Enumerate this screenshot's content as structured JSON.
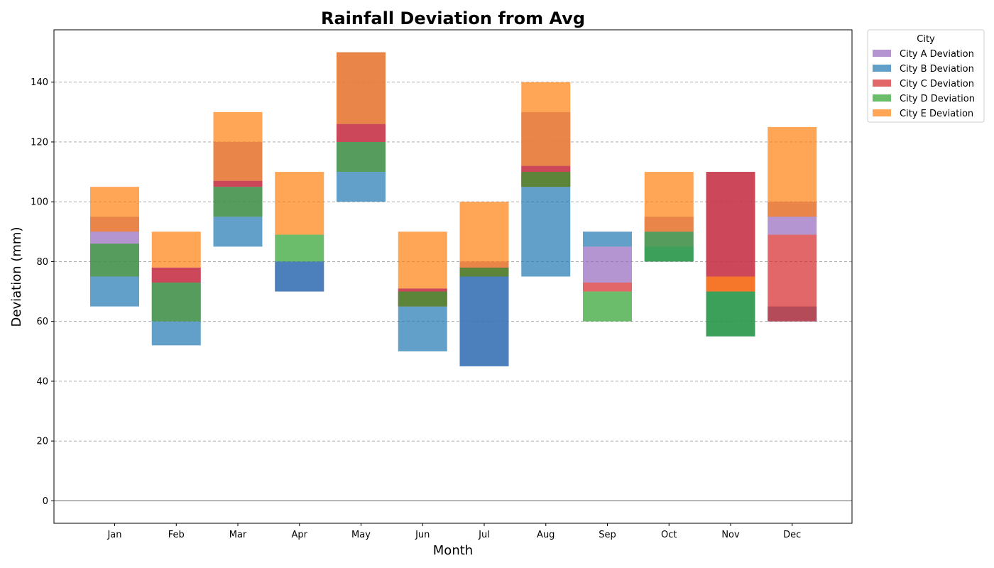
{
  "chart_data": {
    "type": "bar",
    "title": "Rainfall Deviation from Avg",
    "xlabel": "Month",
    "ylabel": "Deviation (mm)",
    "categories": [
      "Jan",
      "Feb",
      "Mar",
      "Apr",
      "May",
      "Jun",
      "Jul",
      "Aug",
      "Sep",
      "Oct",
      "Nov",
      "Dec"
    ],
    "ylim": [
      -7.5,
      157.5
    ],
    "yticks": [
      0,
      20,
      40,
      60,
      80,
      100,
      120,
      140
    ],
    "grid": true,
    "legend_title": "City",
    "legend_position": "outside-top-right",
    "series": [
      {
        "name": "City A Deviation",
        "color": "#9467bd",
        "ranges": [
          [
            75,
            95
          ],
          [
            60,
            78
          ],
          [
            95,
            120
          ],
          [
            70,
            80
          ],
          [
            110,
            150
          ],
          [
            65,
            71
          ],
          [
            45,
            80
          ],
          [
            105,
            130
          ],
          [
            73,
            85
          ],
          [
            85,
            95
          ],
          [
            75,
            110
          ],
          [
            89,
            100
          ]
        ]
      },
      {
        "name": "City B Deviation",
        "color": "#1f77b4",
        "ranges": [
          [
            65,
            75
          ],
          [
            52,
            60
          ],
          [
            85,
            95
          ],
          [
            70,
            80
          ],
          [
            100,
            110
          ],
          [
            50,
            65
          ],
          [
            45,
            75
          ],
          [
            75,
            105
          ],
          [
            85,
            90
          ],
          [
            80,
            85
          ],
          [
            55,
            70
          ],
          [
            60,
            65
          ]
        ]
      },
      {
        "name": "City C Deviation",
        "color": "#d62728",
        "ranges": [
          [
            90,
            90
          ],
          [
            73,
            78
          ],
          [
            105,
            107
          ],
          [
            80,
            80
          ],
          [
            120,
            126
          ],
          [
            65,
            71
          ],
          [
            75,
            78
          ],
          [
            105,
            112
          ],
          [
            70,
            73
          ],
          [
            80,
            80
          ],
          [
            70,
            110
          ],
          [
            60,
            89
          ]
        ]
      },
      {
        "name": "City D Deviation",
        "color": "#2ca02c",
        "ranges": [
          [
            75,
            86
          ],
          [
            60,
            73
          ],
          [
            95,
            105
          ],
          [
            80,
            89
          ],
          [
            110,
            120
          ],
          [
            65,
            70
          ],
          [
            75,
            78
          ],
          [
            105,
            110
          ],
          [
            60,
            70
          ],
          [
            80,
            90
          ],
          [
            55,
            70
          ],
          [
            95,
            95
          ]
        ]
      },
      {
        "name": "City E Deviation",
        "color": "#ff7f0e",
        "ranges": [
          [
            90,
            105
          ],
          [
            78,
            90
          ],
          [
            107,
            130
          ],
          [
            89,
            110
          ],
          [
            126,
            150
          ],
          [
            71,
            90
          ],
          [
            78,
            100
          ],
          [
            112,
            140
          ],
          [
            85,
            85
          ],
          [
            90,
            110
          ],
          [
            70,
            75
          ],
          [
            95,
            125
          ]
        ]
      }
    ]
  }
}
